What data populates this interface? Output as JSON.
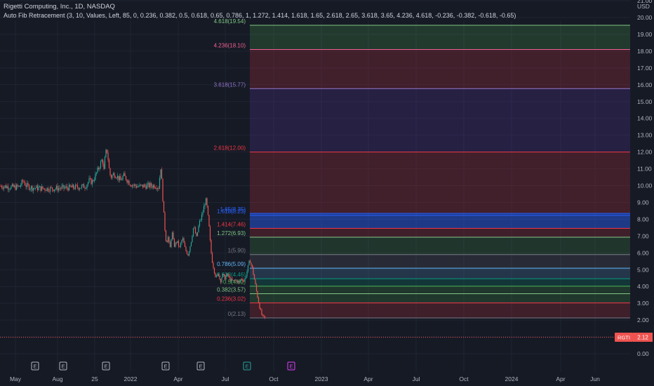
{
  "header": {
    "title": "Rigetti Computing, Inc., 1D, NASDAQ",
    "indicator": "Auto Fib Retracement (3, 10, Values, Left, 85, 0, 0.236, 0.382, 0.5, 0.618, 0.65, 0.786, 1, 1.272, 1.414, 1.618, 1.65, 2.618, 2.65, 3.618, 3.65, 4.236, 4.618, -0.236, -0.382, -0.618, -0.65)"
  },
  "price_axis": {
    "unit": "USD",
    "ticks": [
      "21.00",
      "20.00",
      "19.00",
      "18.00",
      "17.00",
      "16.00",
      "15.00",
      "14.00",
      "13.00",
      "12.00",
      "11.00",
      "10.00",
      "9.00",
      "8.00",
      "7.00",
      "6.00",
      "5.00",
      "4.00",
      "3.00",
      "2.00",
      "1.00",
      "0.00"
    ]
  },
  "time_axis": {
    "labels": [
      "May",
      "Aug",
      "25",
      "2022",
      "Apr",
      "Jul",
      "Oct",
      "2023",
      "Apr",
      "Jul",
      "Oct",
      "2024",
      "Apr",
      "Jun"
    ]
  },
  "ticker_badge": {
    "symbol": "RGTI",
    "price": "2.12"
  },
  "events": [
    "E",
    "E",
    "E",
    "E",
    "E",
    "E",
    "E"
  ],
  "colors": {
    "background": "#161a25",
    "up": "#26a69a",
    "down": "#ef5350",
    "text": "#b2b5be",
    "grid": "#1f2433",
    "price_line": "#ef5350"
  },
  "chart_data": {
    "type": "candlestick",
    "y_unit": "USD",
    "ylim": [
      0,
      21.5
    ],
    "last_price": 2.12,
    "price_path": [
      [
        0,
        9.98
      ],
      [
        8,
        9.95
      ],
      [
        15,
        9.92
      ],
      [
        22,
        9.9
      ],
      [
        28,
        9.95
      ],
      [
        33,
        10.3
      ],
      [
        37,
        10.0
      ],
      [
        45,
        9.88
      ],
      [
        55,
        9.85
      ],
      [
        65,
        9.82
      ],
      [
        75,
        9.82
      ],
      [
        85,
        9.85
      ],
      [
        95,
        9.87
      ],
      [
        105,
        9.9
      ],
      [
        115,
        9.92
      ],
      [
        122,
        9.98
      ],
      [
        127,
        10.3
      ],
      [
        131,
        10.2
      ],
      [
        135,
        10.5
      ],
      [
        139,
        10.9
      ],
      [
        143,
        11.3
      ],
      [
        146,
        11.6
      ],
      [
        148,
        10.9
      ],
      [
        150,
        11.8
      ],
      [
        152,
        12.2
      ],
      [
        154,
        11.6
      ],
      [
        156,
        10.8
      ],
      [
        158,
        10.5
      ],
      [
        162,
        10.7
      ],
      [
        166,
        10.6
      ],
      [
        172,
        10.3
      ],
      [
        176,
        10.6
      ],
      [
        180,
        10.4
      ],
      [
        186,
        10.1
      ],
      [
        192,
        10.0
      ],
      [
        198,
        9.95
      ],
      [
        206,
        9.98
      ],
      [
        214,
        10.0
      ],
      [
        222,
        10.0
      ],
      [
        226,
        9.9
      ],
      [
        229,
        11.1
      ],
      [
        231,
        10.0
      ],
      [
        233,
        8.5
      ],
      [
        235,
        7.4
      ],
      [
        237,
        6.6
      ],
      [
        240,
        7.0
      ],
      [
        242,
        6.1
      ],
      [
        245,
        7.3
      ],
      [
        248,
        6.4
      ],
      [
        252,
        6.7
      ],
      [
        256,
        6.3
      ],
      [
        260,
        6.9
      ],
      [
        264,
        6.2
      ],
      [
        268,
        5.9
      ],
      [
        272,
        6.6
      ],
      [
        276,
        7.6
      ],
      [
        280,
        6.9
      ],
      [
        284,
        7.8
      ],
      [
        287,
        8.1
      ],
      [
        290,
        8.6
      ],
      [
        293,
        9.2
      ],
      [
        295,
        8.7
      ],
      [
        298,
        7.5
      ],
      [
        300,
        6.4
      ],
      [
        302,
        5.6
      ],
      [
        305,
        5.0
      ],
      [
        308,
        4.5
      ],
      [
        311,
        4.8
      ],
      [
        314,
        4.3
      ],
      [
        317,
        4.7
      ],
      [
        320,
        4.5
      ],
      [
        324,
        4.7
      ],
      [
        328,
        4.4
      ],
      [
        332,
        4.3
      ],
      [
        336,
        4.4
      ],
      [
        340,
        4.2
      ],
      [
        344,
        4.5
      ],
      [
        348,
        4.3
      ],
      [
        352,
        4.9
      ],
      [
        356,
        5.6
      ],
      [
        360,
        5.0
      ],
      [
        363,
        4.3
      ],
      [
        366,
        3.6
      ],
      [
        369,
        3.0
      ],
      [
        372,
        2.4
      ],
      [
        375,
        2.15
      ],
      [
        378,
        2.12
      ]
    ],
    "fib_levels": [
      {
        "ratio": "4.618",
        "price": 19.54,
        "label": "4.618(19.54)",
        "color": "#81c784"
      },
      {
        "ratio": "4.236",
        "price": 18.1,
        "label": "4.236(18.10)",
        "color": "#f06292"
      },
      {
        "ratio": "3.618",
        "price": 15.77,
        "label": "3.618(15.77)",
        "color": "#9575cd"
      },
      {
        "ratio": "2.618",
        "price": 12.0,
        "label": "2.618(12.00)",
        "color": "#f23645"
      },
      {
        "ratio": "1.65",
        "price": 8.35,
        "label": "1.65(8.35)",
        "color": "#2962ff"
      },
      {
        "ratio": "1.618",
        "price": 8.23,
        "label": "1.618(8.23)",
        "color": "#2962ff"
      },
      {
        "ratio": "1.414",
        "price": 7.46,
        "label": "1.414(7.46)",
        "color": "#f23645"
      },
      {
        "ratio": "1.272",
        "price": 6.93,
        "label": "1.272(6.93)",
        "color": "#81c784"
      },
      {
        "ratio": "1",
        "price": 5.9,
        "label": "1(5.90)",
        "color": "#787b86"
      },
      {
        "ratio": "0.786",
        "price": 5.09,
        "label": "0.786(5.09)",
        "color": "#64b5f6"
      },
      {
        "ratio": "0.618",
        "price": 4.46,
        "label": "0.618(4.46)",
        "color": "#089981"
      },
      {
        "ratio": "0.5",
        "price": 4.02,
        "label": "0.5(4.02)",
        "color": "#4caf50"
      },
      {
        "ratio": "0.382",
        "price": 3.57,
        "label": "0.382(3.57)",
        "color": "#81c784"
      },
      {
        "ratio": "0.236",
        "price": 3.02,
        "label": "0.236(3.02)",
        "color": "#f23645"
      },
      {
        "ratio": "0",
        "price": 2.13,
        "label": "0(2.13)",
        "color": "#787b86"
      }
    ],
    "fib_bands": [
      {
        "from": 18.1,
        "to": 19.54,
        "color": "#4caf50",
        "opacity": 0.22
      },
      {
        "from": 15.77,
        "to": 18.1,
        "color": "#f23645",
        "opacity": 0.2
      },
      {
        "from": 12.0,
        "to": 15.77,
        "color": "#673ab7",
        "opacity": 0.2
      },
      {
        "from": 8.35,
        "to": 12.0,
        "color": "#f23645",
        "opacity": 0.2
      },
      {
        "from": 8.23,
        "to": 8.35,
        "color": "#2962ff",
        "opacity": 0.45
      },
      {
        "from": 7.46,
        "to": 8.23,
        "color": "#2962ff",
        "opacity": 0.45
      },
      {
        "from": 6.93,
        "to": 7.46,
        "color": "#f23645",
        "opacity": 0.18
      },
      {
        "from": 5.9,
        "to": 6.93,
        "color": "#4caf50",
        "opacity": 0.18
      },
      {
        "from": 5.09,
        "to": 5.9,
        "color": "#787b86",
        "opacity": 0.18
      },
      {
        "from": 4.46,
        "to": 5.09,
        "color": "#64b5f6",
        "opacity": 0.18
      },
      {
        "from": 4.02,
        "to": 4.46,
        "color": "#089981",
        "opacity": 0.22
      },
      {
        "from": 3.57,
        "to": 4.02,
        "color": "#4caf50",
        "opacity": 0.2
      },
      {
        "from": 3.02,
        "to": 3.57,
        "color": "#4caf50",
        "opacity": 0.2
      },
      {
        "from": 2.13,
        "to": 3.02,
        "color": "#f23645",
        "opacity": 0.18
      }
    ]
  }
}
